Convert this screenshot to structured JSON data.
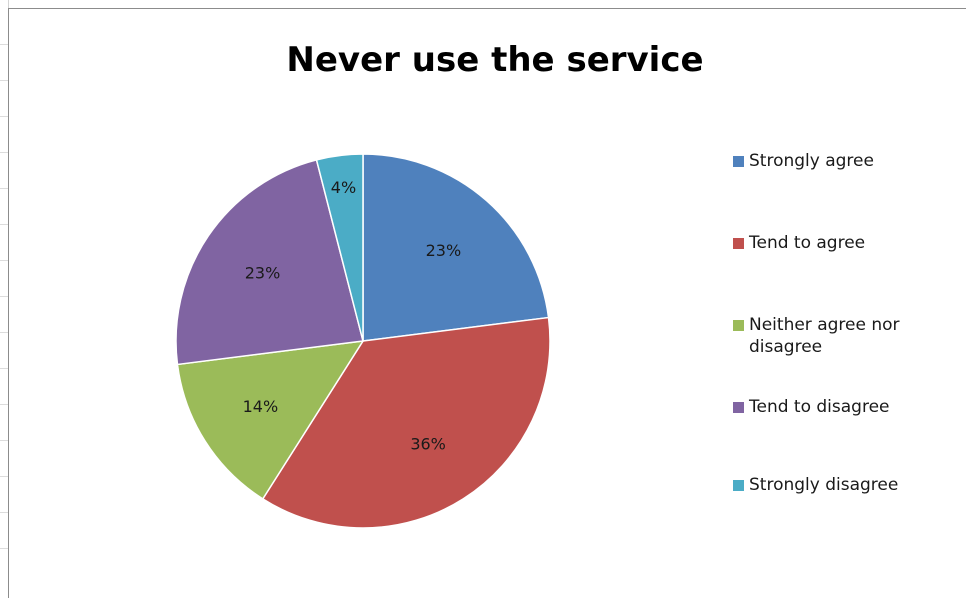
{
  "chart_data": {
    "type": "pie",
    "title": "Never use the service",
    "categories": [
      "Strongly agree",
      "Tend to agree",
      "Neither agree nor disagree",
      "Tend to disagree",
      "Strongly disagree"
    ],
    "values": [
      23,
      36,
      14,
      23,
      4
    ],
    "labels": [
      "23%",
      "36%",
      "14%",
      "23%",
      "4%"
    ],
    "colors": [
      "#4F81BD",
      "#C0504D",
      "#9BBB59",
      "#8064A2",
      "#4BACC6"
    ],
    "legend_position": "right",
    "start_angle": "12 o'clock, clockwise"
  }
}
